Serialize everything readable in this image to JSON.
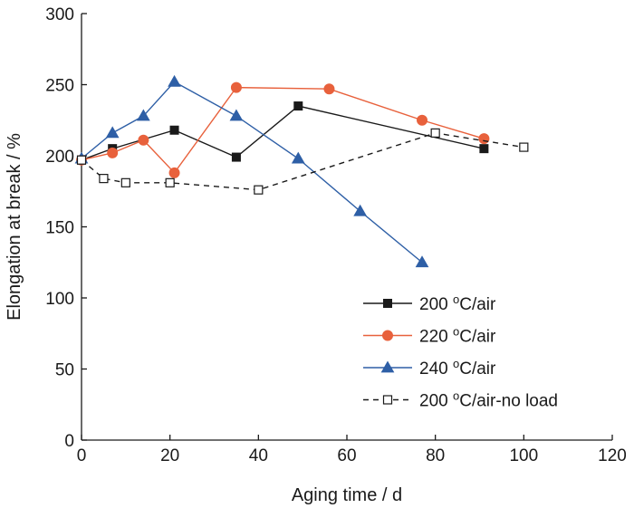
{
  "chart_data": {
    "type": "line",
    "title": "",
    "xlabel": "Aging time / d",
    "ylabel": "Elongation at break / %",
    "xlim": [
      0,
      120
    ],
    "ylim": [
      0,
      300
    ],
    "xticks": [
      "0",
      "20",
      "40",
      "60",
      "80",
      "100",
      "120"
    ],
    "yticks": [
      "0",
      "50",
      "100",
      "150",
      "200",
      "250",
      "300"
    ],
    "grid": false,
    "legend_position": "bottom-right",
    "series": [
      {
        "name_base": "200 ",
        "name_sup": "o",
        "name_rest": "C/air",
        "color": "#1a1a1a",
        "marker": "square-filled",
        "line": "solid",
        "x": [
          0,
          7,
          21,
          35,
          49,
          91
        ],
        "y": [
          197,
          205,
          218,
          199,
          235,
          205
        ]
      },
      {
        "name_base": "220 ",
        "name_sup": "o",
        "name_rest": "C/air",
        "color": "#e8613c",
        "marker": "circle-filled",
        "line": "solid",
        "x": [
          0,
          7,
          14,
          21,
          35,
          56,
          77,
          91
        ],
        "y": [
          197,
          202,
          211,
          188,
          248,
          247,
          225,
          212
        ]
      },
      {
        "name_base": "240 ",
        "name_sup": "o",
        "name_rest": "C/air",
        "color": "#2e5fa6",
        "marker": "triangle-filled",
        "line": "solid",
        "x": [
          0,
          7,
          14,
          21,
          35,
          49,
          63,
          77
        ],
        "y": [
          198,
          216,
          228,
          252,
          228,
          198,
          161,
          125
        ]
      },
      {
        "name_base": "200 ",
        "name_sup": "o",
        "name_rest": "C/air-no load",
        "color": "#1a1a1a",
        "marker": "square-open",
        "line": "dashed",
        "x": [
          0,
          5,
          10,
          20,
          40,
          80,
          100
        ],
        "y": [
          197,
          184,
          181,
          181,
          176,
          216,
          206
        ]
      }
    ]
  }
}
